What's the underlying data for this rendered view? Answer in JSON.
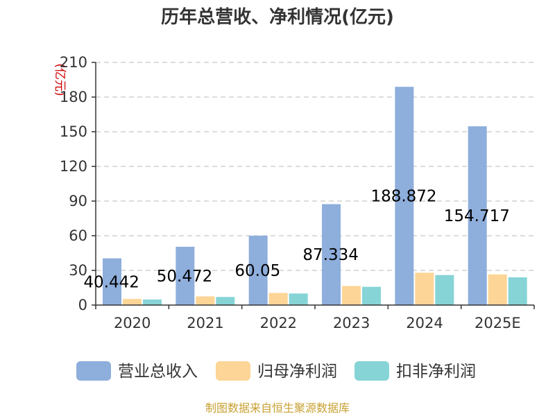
{
  "chart_data": {
    "type": "bar",
    "title": "历年总营收、净利情况(亿元)",
    "ylabel": "(亿元)",
    "xlabel": "",
    "categories": [
      "2020",
      "2021",
      "2022",
      "2023",
      "2024",
      "2025E"
    ],
    "ylim": [
      0,
      210
    ],
    "yticks": [
      0,
      30,
      60,
      90,
      120,
      150,
      180,
      210
    ],
    "grid": true,
    "legend_position": "bottom",
    "series": [
      {
        "name": "营业总收入",
        "color": "#8eaedc",
        "values": [
          40.442,
          50.472,
          60.05,
          87.334,
          188.872,
          154.717
        ],
        "labels": [
          "40.442",
          "50.472",
          "60.05",
          "87.334",
          "188.872",
          "154.717"
        ]
      },
      {
        "name": "归母净利润",
        "color": "#fdd596",
        "values": [
          5.3,
          7.5,
          10.5,
          16.5,
          28.0,
          26.5
        ]
      },
      {
        "name": "扣非净利润",
        "color": "#86d4d6",
        "values": [
          4.8,
          7.0,
          10.0,
          15.8,
          26.0,
          24.0
        ]
      }
    ],
    "source": "制图数据来自恒生聚源数据库"
  }
}
